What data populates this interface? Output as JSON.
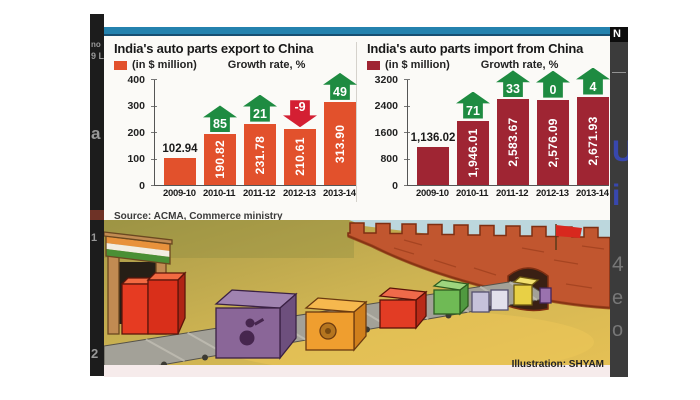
{
  "chart_data": [
    {
      "type": "bar",
      "title": "India's auto parts export to China",
      "legend": "(in $ million)",
      "growth_label": "Growth rate, %",
      "categories": [
        "2009-10",
        "2010-11",
        "2011-12",
        "2012-13",
        "2013-14"
      ],
      "values": [
        102.94,
        190.82,
        231.78,
        210.61,
        313.9
      ],
      "value_labels": [
        "102.94",
        "190.82",
        "231.78",
        "210.61",
        "313.90"
      ],
      "growth_rates": [
        null,
        85,
        21,
        -9,
        49
      ],
      "bar_color": "#e2512c",
      "ylim": [
        0,
        400
      ],
      "yticks": [
        0,
        100,
        200,
        300,
        400
      ],
      "grid": false,
      "legend_position": "top-left"
    },
    {
      "type": "bar",
      "title": "India's auto parts import from China",
      "legend": "(in $ million)",
      "growth_label": "Growth rate, %",
      "categories": [
        "2009-10",
        "2010-11",
        "2011-12",
        "2012-13",
        "2013-14"
      ],
      "values": [
        1136.02,
        1946.01,
        2583.67,
        2576.09,
        2671.93
      ],
      "value_labels": [
        "1,136.02",
        "1,946.01",
        "2,583.67",
        "2,576.09",
        "2,671.93"
      ],
      "growth_rates": [
        null,
        71,
        33,
        0,
        4
      ],
      "bar_color": "#9f2533",
      "ylim": [
        0,
        3200
      ],
      "yticks": [
        0,
        800,
        1600,
        2400,
        3200
      ],
      "grid": false,
      "legend_position": "top-left"
    }
  ],
  "infographic": {
    "source": "Source: ACMA, Commerce ministry",
    "credit": "Illustration: SHYAM",
    "illustration_description": "Boxes on a conveyor belt moving from an India tricolor gate towards a Great Wall of China arch flying the Chinese flag"
  },
  "side_fragments": {
    "left": [
      "no",
      "9 L",
      "a",
      "1",
      "2"
    ],
    "right_tab": "N",
    "right": [
      "—",
      "U",
      "i",
      "4",
      "e",
      "o"
    ]
  },
  "colors": {
    "top_bar": "#2482ae",
    "export_bar": "#e2512c",
    "import_bar": "#9f2533",
    "growth_up": "#1e8b41",
    "growth_down": "#d41f33",
    "panel_bg": "#fbfaf7",
    "credit_strip": "#f6ebeb"
  }
}
